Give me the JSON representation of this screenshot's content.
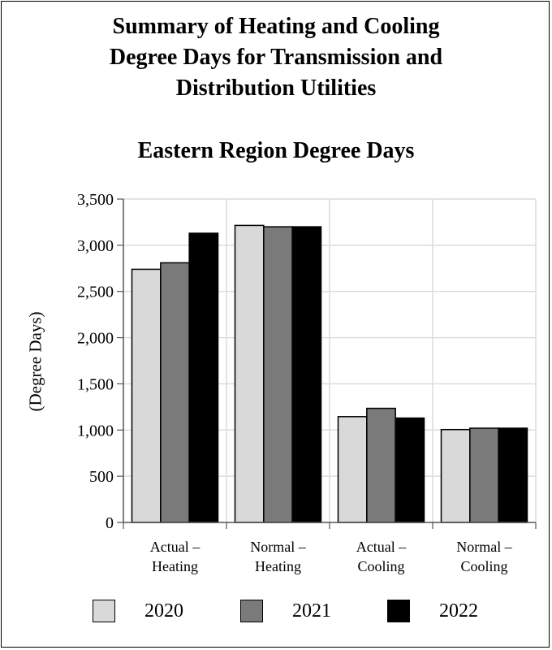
{
  "title_lines": [
    "Summary of Heating and Cooling",
    "Degree Days for Transmission and",
    "Distribution Utilities"
  ],
  "chart_data": {
    "type": "bar",
    "title": "Eastern Region Degree Days",
    "ylabel": "(Degree Days)",
    "xlabel": "",
    "ylim": [
      0,
      3500
    ],
    "yticks": [
      0,
      500,
      1000,
      1500,
      2000,
      2500,
      3000,
      3500
    ],
    "ytick_labels": [
      "0",
      "500",
      "1,000",
      "1,500",
      "2,000",
      "2,500",
      "3,000",
      "3,500"
    ],
    "categories": [
      [
        "Actual –",
        "Heating"
      ],
      [
        "Normal –",
        "Heating"
      ],
      [
        "Actual –",
        "Cooling"
      ],
      [
        "Normal –",
        "Cooling"
      ]
    ],
    "series": [
      {
        "name": "2020",
        "color": "#d9d9d9",
        "values": [
          2740,
          3215,
          1145,
          1005
        ]
      },
      {
        "name": "2021",
        "color": "#7a7a7a",
        "values": [
          2810,
          3200,
          1235,
          1020
        ]
      },
      {
        "name": "2022",
        "color": "#000000",
        "values": [
          3130,
          3200,
          1130,
          1020
        ]
      }
    ],
    "grid": true,
    "legend_position": "bottom"
  }
}
